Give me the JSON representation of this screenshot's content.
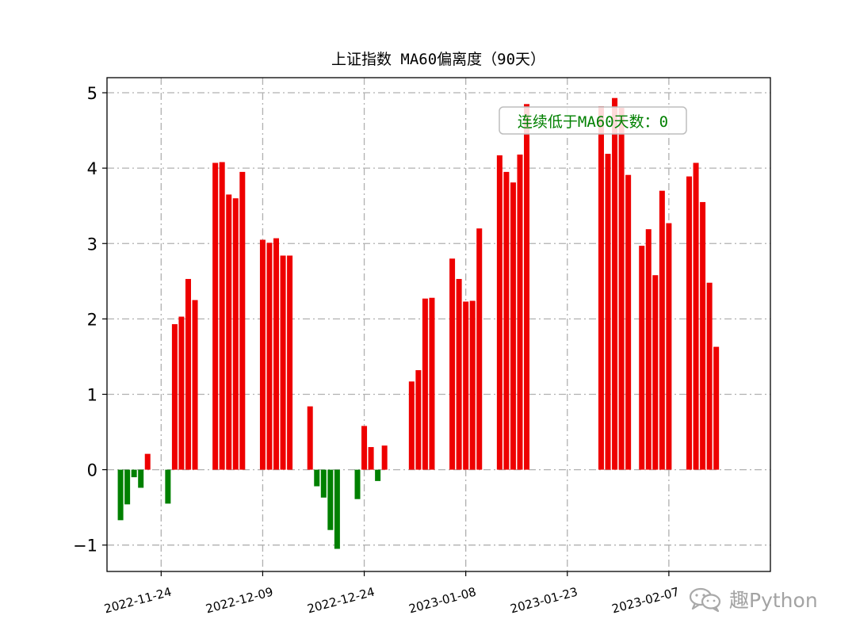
{
  "chart_data": {
    "type": "bar",
    "title": "上证指数 MA60偏离度（90天）",
    "xlabel": "",
    "ylabel": "",
    "ylim": [
      -1.35,
      5.2
    ],
    "yticks": [
      -1,
      0,
      1,
      2,
      3,
      4,
      5
    ],
    "xticks": [
      {
        "date": "2022-11-24",
        "label": "2022-11-24"
      },
      {
        "date": "2022-12-09",
        "label": "2022-12-09"
      },
      {
        "date": "2022-12-24",
        "label": "2022-12-24"
      },
      {
        "date": "2023-01-08",
        "label": "2023-01-08"
      },
      {
        "date": "2023-01-23",
        "label": "2023-01-23"
      },
      {
        "date": "2023-02-07",
        "label": "2023-02-07"
      }
    ],
    "xlim": [
      "2022-11-16",
      "2023-02-22"
    ],
    "grid": true,
    "colors": {
      "positive": "#ee0000",
      "negative": "#008000"
    },
    "annotation": {
      "text": "连续低于MA60天数：0",
      "color": "#008000"
    },
    "data": [
      {
        "date": "2022-11-18",
        "value": -0.67
      },
      {
        "date": "2022-11-19",
        "value": -0.46
      },
      {
        "date": "2022-11-20",
        "value": -0.1
      },
      {
        "date": "2022-11-21",
        "value": -0.24
      },
      {
        "date": "2022-11-22",
        "value": 0.21
      },
      {
        "date": "2022-11-25",
        "value": -0.45
      },
      {
        "date": "2022-11-26",
        "value": 1.93
      },
      {
        "date": "2022-11-27",
        "value": 2.03
      },
      {
        "date": "2022-11-28",
        "value": 2.53
      },
      {
        "date": "2022-11-29",
        "value": 2.25
      },
      {
        "date": "2022-12-02",
        "value": 4.07
      },
      {
        "date": "2022-12-03",
        "value": 4.08
      },
      {
        "date": "2022-12-04",
        "value": 3.65
      },
      {
        "date": "2022-12-05",
        "value": 3.6
      },
      {
        "date": "2022-12-06",
        "value": 3.95
      },
      {
        "date": "2022-12-09",
        "value": 3.05
      },
      {
        "date": "2022-12-10",
        "value": 3.01
      },
      {
        "date": "2022-12-11",
        "value": 3.07
      },
      {
        "date": "2022-12-12",
        "value": 2.84
      },
      {
        "date": "2022-12-13",
        "value": 2.84
      },
      {
        "date": "2022-12-16",
        "value": 0.84
      },
      {
        "date": "2022-12-17",
        "value": -0.22
      },
      {
        "date": "2022-12-18",
        "value": -0.37
      },
      {
        "date": "2022-12-19",
        "value": -0.8
      },
      {
        "date": "2022-12-20",
        "value": -1.05
      },
      {
        "date": "2022-12-23",
        "value": -0.39
      },
      {
        "date": "2022-12-24",
        "value": 0.58
      },
      {
        "date": "2022-12-25",
        "value": 0.3
      },
      {
        "date": "2022-12-26",
        "value": -0.15
      },
      {
        "date": "2022-12-27",
        "value": 0.32
      },
      {
        "date": "2022-12-31",
        "value": 1.17
      },
      {
        "date": "2023-01-01",
        "value": 1.32
      },
      {
        "date": "2023-01-02",
        "value": 2.27
      },
      {
        "date": "2023-01-03",
        "value": 2.28
      },
      {
        "date": "2023-01-06",
        "value": 2.8
      },
      {
        "date": "2023-01-07",
        "value": 2.53
      },
      {
        "date": "2023-01-08",
        "value": 2.23
      },
      {
        "date": "2023-01-09",
        "value": 2.24
      },
      {
        "date": "2023-01-10",
        "value": 3.2
      },
      {
        "date": "2023-01-13",
        "value": 4.17
      },
      {
        "date": "2023-01-14",
        "value": 3.95
      },
      {
        "date": "2023-01-15",
        "value": 3.81
      },
      {
        "date": "2023-01-16",
        "value": 4.18
      },
      {
        "date": "2023-01-17",
        "value": 4.85
      },
      {
        "date": "2023-01-28",
        "value": 4.82
      },
      {
        "date": "2023-01-29",
        "value": 4.19
      },
      {
        "date": "2023-01-30",
        "value": 4.93
      },
      {
        "date": "2023-01-31",
        "value": 4.8
      },
      {
        "date": "2023-02-01",
        "value": 3.91
      },
      {
        "date": "2023-02-03",
        "value": 2.97
      },
      {
        "date": "2023-02-04",
        "value": 3.19
      },
      {
        "date": "2023-02-05",
        "value": 2.58
      },
      {
        "date": "2023-02-06",
        "value": 3.7
      },
      {
        "date": "2023-02-07",
        "value": 3.27
      },
      {
        "date": "2023-02-10",
        "value": 3.89
      },
      {
        "date": "2023-02-11",
        "value": 4.07
      },
      {
        "date": "2023-02-12",
        "value": 3.55
      },
      {
        "date": "2023-02-13",
        "value": 2.48
      },
      {
        "date": "2023-02-14",
        "value": 1.63
      }
    ]
  },
  "watermark": {
    "text": "趣Python",
    "icon": "wechat-icon"
  }
}
